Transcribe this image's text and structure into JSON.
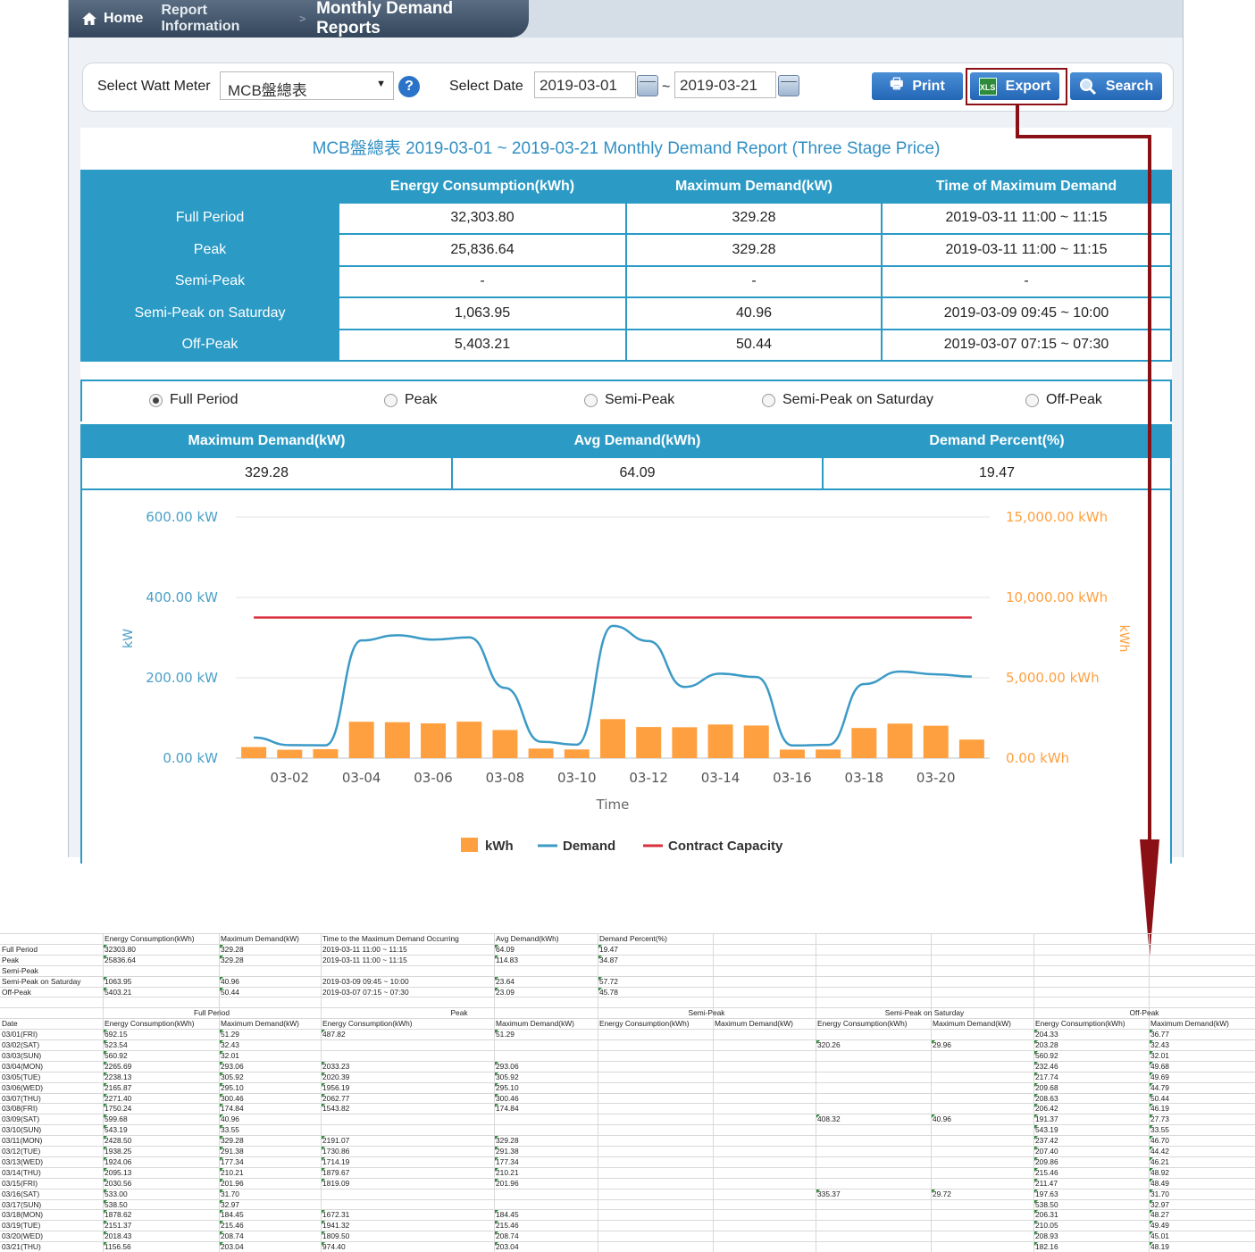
{
  "breadcrumb": {
    "home": "Home",
    "section": "Report Information",
    "current": "Monthly Demand Reports",
    "separator": ">"
  },
  "toolbar": {
    "meter_label": "Select Watt Meter",
    "meter_value": "MCB盤總表",
    "help": "?",
    "date_label": "Select Date",
    "date_from": "2019-03-01",
    "date_sep": "~",
    "date_to": "2019-03-21",
    "print_label": "Print",
    "export_label": "Export",
    "search_label": "Search"
  },
  "colors": {
    "accent": "#2b9bc6",
    "title_text": "#3190c4",
    "export_highlight": "#8b1016",
    "bar": "#ffa040",
    "demand_line": "#3b9ac6",
    "contract_line": "#d9303e"
  },
  "report": {
    "title": "MCB盤總表 2019-03-01 ~ 2019-03-21 Monthly Demand Report (Three Stage Price)",
    "headers": [
      "",
      "Energy Consumption(kWh)",
      "Maximum Demand(kW)",
      "Time of Maximum Demand"
    ],
    "rows": [
      {
        "label": "Full Period",
        "energy": "32,303.80",
        "max": "329.28",
        "time": "2019-03-11 11:00 ~ 11:15"
      },
      {
        "label": "Peak",
        "energy": "25,836.64",
        "max": "329.28",
        "time": "2019-03-11 11:00 ~ 11:15"
      },
      {
        "label": "Semi-Peak",
        "energy": "-",
        "max": "-",
        "time": "-"
      },
      {
        "label": "Semi-Peak on Saturday",
        "energy": "1,063.95",
        "max": "40.96",
        "time": "2019-03-09 09:45 ~ 10:00"
      },
      {
        "label": "Off-Peak",
        "energy": "5,403.21",
        "max": "50.44",
        "time": "2019-03-07 07:15 ~ 07:30"
      }
    ]
  },
  "radios": {
    "options": [
      "Full Period",
      "Peak",
      "Semi-Peak",
      "Semi-Peak on Saturday",
      "Off-Peak"
    ],
    "selected": "Full Period"
  },
  "stats": {
    "headers": [
      "Maximum Demand(kW)",
      "Avg Demand(kWh)",
      "Demand Percent(%)"
    ],
    "values": [
      "329.28",
      "64.09",
      "19.47"
    ]
  },
  "chart_data": {
    "type": "bar",
    "categories": [
      "03-01",
      "03-02",
      "03-03",
      "03-04",
      "03-05",
      "03-06",
      "03-07",
      "03-08",
      "03-09",
      "03-10",
      "03-11",
      "03-12",
      "03-13",
      "03-14",
      "03-15",
      "03-16",
      "03-17",
      "03-18",
      "03-19",
      "03-20",
      "03-21"
    ],
    "x_tick_labels": [
      "03-02",
      "03-04",
      "03-06",
      "03-08",
      "03-10",
      "03-12",
      "03-14",
      "03-16",
      "03-18",
      "03-20"
    ],
    "xlabel": "Time",
    "ylabel_left": "kW",
    "ylabel_right": "kWh",
    "y_left_ticks": [
      "0.00 kW",
      "200.00 kW",
      "400.00 kW",
      "600.00 kW"
    ],
    "ylim_left": [
      0,
      600
    ],
    "y_right_ticks": [
      "0.00 kWh",
      "5,000.00 kWh",
      "10,000.00 kWh",
      "15,000.00 kWh"
    ],
    "ylim_right": [
      0,
      15000
    ],
    "series": [
      {
        "name": "kWh",
        "type": "bar",
        "axis": "right",
        "values": [
          692.15,
          523.54,
          560.92,
          2265.69,
          2238.13,
          2165.87,
          2271.4,
          1750.24,
          599.68,
          543.19,
          2428.5,
          1938.25,
          1924.06,
          2095.13,
          2030.56,
          533.0,
          538.5,
          1878.62,
          2151.37,
          2018.43,
          1156.56
        ]
      },
      {
        "name": "Demand",
        "type": "line",
        "axis": "left",
        "values": [
          51.29,
          32.43,
          32.01,
          293.06,
          305.92,
          295.1,
          300.46,
          174.84,
          40.96,
          33.55,
          329.28,
          291.38,
          177.34,
          210.21,
          201.96,
          31.7,
          32.97,
          184.45,
          215.46,
          208.74,
          203.04
        ]
      },
      {
        "name": "Contract Capacity",
        "type": "line",
        "axis": "left",
        "values": [
          350,
          350,
          350,
          350,
          350,
          350,
          350,
          350,
          350,
          350,
          350,
          350,
          350,
          350,
          350,
          350,
          350,
          350,
          350,
          350,
          350
        ]
      }
    ],
    "legend": "bottom-center",
    "grid": true
  },
  "sheet": {
    "summary_headers": [
      "",
      "Energy Consumption(kWh)",
      "Maximum Demand(kW)",
      "Time to the Maximum Demand Occurring",
      "Avg Demand(kWh)",
      "Demand Percent(%)"
    ],
    "summary_rows": [
      [
        "Full Period",
        "32303.80",
        "329.28",
        "2019-03-11 11:00 ~ 11:15",
        "64.09",
        "19.47"
      ],
      [
        "Peak",
        "25836.64",
        "329.28",
        "2019-03-11 11:00 ~ 11:15",
        "114.83",
        "34.87"
      ],
      [
        "Semi-Peak",
        "",
        "",
        "",
        "",
        ""
      ],
      [
        "Semi-Peak on Saturday",
        "1063.95",
        "40.96",
        "2019-03-09 09:45 ~ 10:00",
        "23.64",
        "57.72"
      ],
      [
        "Off-Peak",
        "5403.21",
        "50.44",
        "2019-03-07 07:15 ~ 07:30",
        "23.09",
        "45.78"
      ]
    ],
    "groups": [
      "Full Period",
      "Peak",
      "Semi-Peak",
      "Semi-Peak on Saturday",
      "Off-Peak"
    ],
    "detail_headers": [
      "Date",
      "Energy Consumption(kWh)",
      "Maximum Demand(kW)",
      "Energy Consumption(kWh)",
      "Maximum Demand(kW)",
      "Energy Consumption(kWh)",
      "Maximum Demand(kW)",
      "Energy Consumption(kWh)",
      "Maximum Demand(kW)",
      "Energy Consumption(kWh)",
      "Maximum Demand(kW)"
    ],
    "detail_rows": [
      [
        "03/01(FRI)",
        "692.15",
        "51.29",
        "487.82",
        "51.29",
        "",
        "",
        "",
        "",
        "204.33",
        "36.77"
      ],
      [
        "03/02(SAT)",
        "523.54",
        "32.43",
        "",
        "",
        "",
        "",
        "320.26",
        "29.96",
        "203.28",
        "32.43"
      ],
      [
        "03/03(SUN)",
        "560.92",
        "32.01",
        "",
        "",
        "",
        "",
        "",
        "",
        "560.92",
        "32.01"
      ],
      [
        "03/04(MON)",
        "2265.69",
        "293.06",
        "2033.23",
        "293.06",
        "",
        "",
        "",
        "",
        "232.46",
        "49.68"
      ],
      [
        "03/05(TUE)",
        "2238.13",
        "305.92",
        "2020.39",
        "305.92",
        "",
        "",
        "",
        "",
        "217.74",
        "49.69"
      ],
      [
        "03/06(WED)",
        "2165.87",
        "295.10",
        "1956.19",
        "295.10",
        "",
        "",
        "",
        "",
        "209.68",
        "44.79"
      ],
      [
        "03/07(THU)",
        "2271.40",
        "300.46",
        "2062.77",
        "300.46",
        "",
        "",
        "",
        "",
        "208.63",
        "50.44"
      ],
      [
        "03/08(FRI)",
        "1750.24",
        "174.84",
        "1543.82",
        "174.84",
        "",
        "",
        "",
        "",
        "206.42",
        "46.19"
      ],
      [
        "03/09(SAT)",
        "599.68",
        "40.96",
        "",
        "",
        "",
        "",
        "408.32",
        "40.96",
        "191.37",
        "27.73"
      ],
      [
        "03/10(SUN)",
        "543.19",
        "33.55",
        "",
        "",
        "",
        "",
        "",
        "",
        "543.19",
        "33.55"
      ],
      [
        "03/11(MON)",
        "2428.50",
        "329.28",
        "2191.07",
        "329.28",
        "",
        "",
        "",
        "",
        "237.42",
        "46.70"
      ],
      [
        "03/12(TUE)",
        "1938.25",
        "291.38",
        "1730.86",
        "291.38",
        "",
        "",
        "",
        "",
        "207.40",
        "44.42"
      ],
      [
        "03/13(WED)",
        "1924.06",
        "177.34",
        "1714.19",
        "177.34",
        "",
        "",
        "",
        "",
        "209.86",
        "46.21"
      ],
      [
        "03/14(THU)",
        "2095.13",
        "210.21",
        "1879.67",
        "210.21",
        "",
        "",
        "",
        "",
        "215.46",
        "48.92"
      ],
      [
        "03/15(FRI)",
        "2030.56",
        "201.96",
        "1819.09",
        "201.96",
        "",
        "",
        "",
        "",
        "211.47",
        "48.49"
      ],
      [
        "03/16(SAT)",
        "533.00",
        "31.70",
        "",
        "",
        "",
        "",
        "335.37",
        "29.72",
        "197.63",
        "31.70"
      ],
      [
        "03/17(SUN)",
        "538.50",
        "32.97",
        "",
        "",
        "",
        "",
        "",
        "",
        "538.50",
        "32.97"
      ],
      [
        "03/18(MON)",
        "1878.62",
        "184.45",
        "1672.31",
        "184.45",
        "",
        "",
        "",
        "",
        "206.31",
        "48.27"
      ],
      [
        "03/19(TUE)",
        "2151.37",
        "215.46",
        "1941.32",
        "215.46",
        "",
        "",
        "",
        "",
        "210.05",
        "49.49"
      ],
      [
        "03/20(WED)",
        "2018.43",
        "208.74",
        "1809.50",
        "208.74",
        "",
        "",
        "",
        "",
        "208.93",
        "45.01"
      ],
      [
        "03/21(THU)",
        "1156.56",
        "203.04",
        "974.40",
        "203.04",
        "",
        "",
        "",
        "",
        "182.16",
        "48.19"
      ]
    ]
  }
}
